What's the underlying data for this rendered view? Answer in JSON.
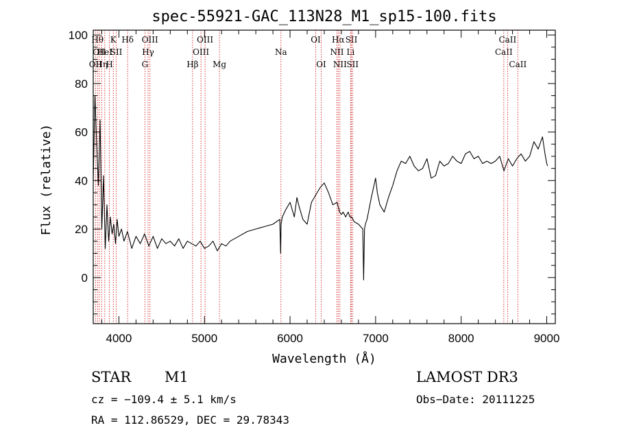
{
  "chart_data": {
    "type": "line",
    "title": "spec-55921-GAC_113N28_M1_sp15-100.fits",
    "xlabel": "Wavelength (Å)",
    "ylabel": "Flux (relative)",
    "xlim": [
      3700,
      9100
    ],
    "ylim": [
      -19,
      102
    ],
    "xticks": [
      4000,
      5000,
      6000,
      7000,
      8000,
      9000
    ],
    "xtick_labels": [
      "4000",
      "5000",
      "6000",
      "7000",
      "8000",
      "9000"
    ],
    "xminor_step": 200,
    "yticks": [
      0,
      20,
      40,
      60,
      80,
      100
    ],
    "ytick_labels": [
      "0",
      "20",
      "40",
      "60",
      "80",
      "100"
    ],
    "yminor_step": 5,
    "line_color": "#000000",
    "marker_color": "#cc0000",
    "series": [
      {
        "name": "spectrum",
        "x": [
          3700,
          3720,
          3740,
          3760,
          3780,
          3800,
          3820,
          3840,
          3860,
          3880,
          3900,
          3920,
          3940,
          3960,
          3980,
          4000,
          4030,
          4060,
          4100,
          4150,
          4200,
          4250,
          4300,
          4350,
          4400,
          4450,
          4500,
          4550,
          4600,
          4650,
          4700,
          4750,
          4800,
          4850,
          4900,
          4950,
          5000,
          5050,
          5100,
          5150,
          5200,
          5250,
          5300,
          5400,
          5500,
          5600,
          5700,
          5800,
          5880,
          5890,
          5895,
          5910,
          5950,
          6000,
          6050,
          6080,
          6100,
          6150,
          6200,
          6250,
          6300,
          6350,
          6400,
          6450,
          6500,
          6550,
          6580,
          6600,
          6620,
          6650,
          6680,
          6700,
          6720,
          6750,
          6800,
          6850,
          6860,
          6870,
          6880,
          6900,
          6950,
          7000,
          7020,
          7050,
          7100,
          7150,
          7200,
          7250,
          7300,
          7350,
          7400,
          7450,
          7500,
          7550,
          7600,
          7650,
          7700,
          7750,
          7800,
          7850,
          7900,
          7950,
          8000,
          8050,
          8100,
          8150,
          8200,
          8250,
          8300,
          8350,
          8400,
          8450,
          8500,
          8550,
          8600,
          8650,
          8700,
          8750,
          8800,
          8850,
          8900,
          8950,
          8980,
          9000,
          9010
        ],
        "y": [
          40,
          75,
          55,
          38,
          65,
          20,
          42,
          12,
          30,
          15,
          25,
          18,
          22,
          14,
          24,
          17,
          20,
          15,
          19,
          12,
          17,
          14,
          18,
          13,
          17,
          12,
          16,
          14,
          15,
          13,
          16,
          12,
          15,
          14,
          13,
          15,
          12,
          13,
          15,
          11,
          14,
          13,
          15,
          17,
          19,
          20,
          21,
          22,
          24,
          10,
          22,
          25,
          28,
          31,
          25,
          33,
          30,
          24,
          22,
          31,
          34,
          37,
          39,
          35,
          30,
          31,
          27,
          26,
          27,
          25,
          27,
          25,
          25,
          23,
          22,
          20,
          -1,
          20,
          22,
          24,
          33,
          41,
          35,
          30,
          27,
          33,
          38,
          44,
          48,
          47,
          50,
          46,
          44,
          45,
          49,
          41,
          42,
          48,
          46,
          47,
          50,
          48,
          47,
          51,
          52,
          49,
          50,
          47,
          48,
          47,
          48,
          50,
          44,
          49,
          46,
          49,
          51,
          48,
          50,
          56,
          53,
          58,
          51,
          47,
          46
        ]
      }
    ],
    "line_markers": [
      {
        "wavelength": 3727,
        "row": 2,
        "label": "OII"
      },
      {
        "wavelength": 3750,
        "row": 0,
        "label": "Hθ"
      },
      {
        "wavelength": 3771,
        "row": 1,
        "label": "OII"
      },
      {
        "wavelength": 3798,
        "row": 2,
        "label": "Hη"
      },
      {
        "wavelength": 3835,
        "row": 1,
        "label": "HeI"
      },
      {
        "wavelength": 3889,
        "row": 2,
        "label": "H"
      },
      {
        "wavelength": 3934,
        "row": 0,
        "label": "K"
      },
      {
        "wavelength": 3969,
        "row": 1,
        "label": "SII"
      },
      {
        "wavelength": 4102,
        "row": 0,
        "label": "Hδ"
      },
      {
        "wavelength": 4304,
        "row": 2,
        "label": "G"
      },
      {
        "wavelength": 4341,
        "row": 1,
        "label": "Hγ"
      },
      {
        "wavelength": 4363,
        "row": 0,
        "label": "OIII"
      },
      {
        "wavelength": 4861,
        "row": 2,
        "label": "Hβ"
      },
      {
        "wavelength": 4959,
        "row": 1,
        "label": "OIII"
      },
      {
        "wavelength": 5007,
        "row": 0,
        "label": "OIII"
      },
      {
        "wavelength": 5175,
        "row": 2,
        "label": "Mg"
      },
      {
        "wavelength": 5894,
        "row": 1,
        "label": "Na"
      },
      {
        "wavelength": 6300,
        "row": 0,
        "label": "OI"
      },
      {
        "wavelength": 6364,
        "row": 2,
        "label": "OI"
      },
      {
        "wavelength": 6548,
        "row": 1,
        "label": "NII"
      },
      {
        "wavelength": 6563,
        "row": 0,
        "label": "Hα"
      },
      {
        "wavelength": 6583,
        "row": 2,
        "label": "NII"
      },
      {
        "wavelength": 6708,
        "row": 1,
        "label": "Li"
      },
      {
        "wavelength": 6717,
        "row": 0,
        "label": "SII"
      },
      {
        "wavelength": 6731,
        "row": 2,
        "label": "SII"
      },
      {
        "wavelength": 8498,
        "row": 1,
        "label": "CaII"
      },
      {
        "wavelength": 8542,
        "row": 0,
        "label": "CaII"
      },
      {
        "wavelength": 8662,
        "row": 2,
        "label": "CaII"
      }
    ]
  },
  "footer": {
    "object_class": "STAR",
    "subclass": "M1",
    "survey": "LAMOST DR3",
    "cz": "cz = −109.4 ± 5.1 km/s",
    "obs_date": "Obs−Date: 20111225",
    "coords": "RA = 112.86529, DEC =  29.78343"
  }
}
